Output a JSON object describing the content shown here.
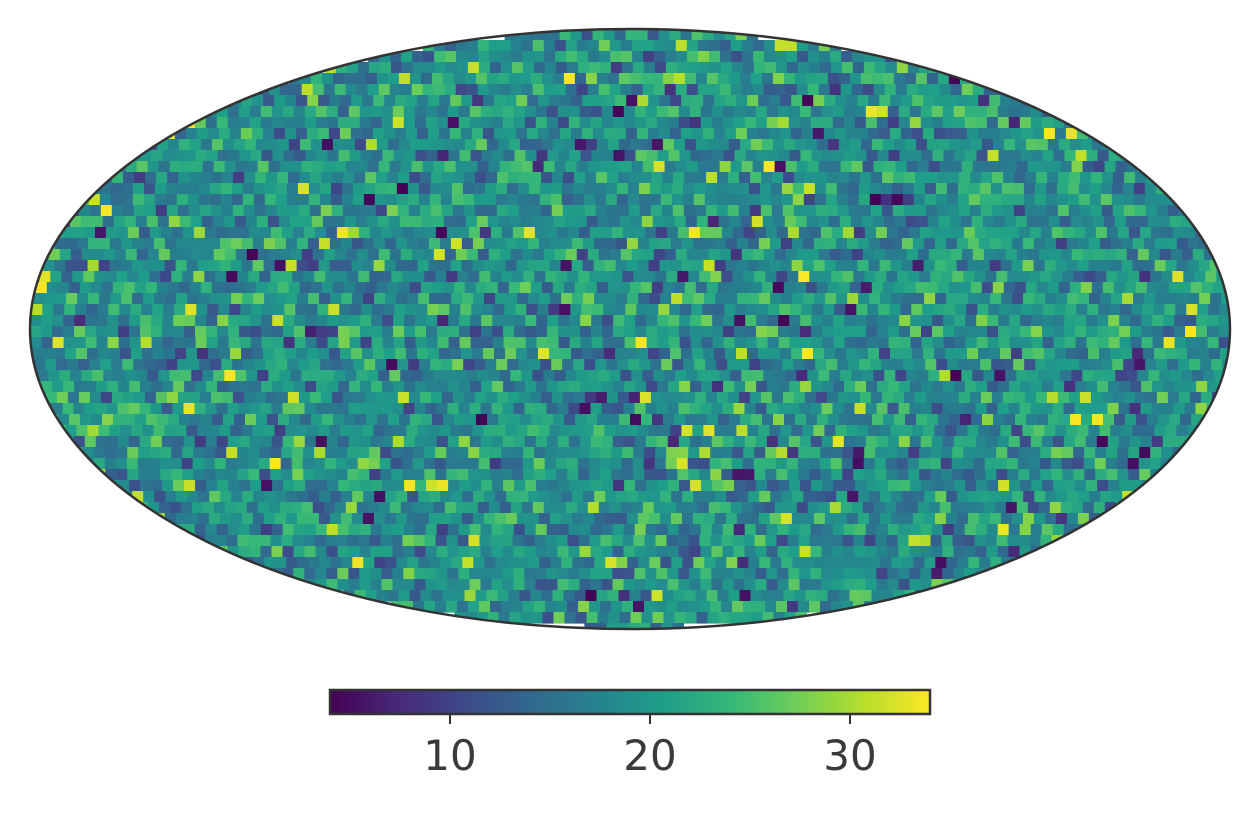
{
  "chart_data": {
    "type": "heatmap",
    "projection": "mollweide",
    "colormap": "viridis",
    "colormap_stops": [
      "#440154",
      "#482878",
      "#3e4989",
      "#31688e",
      "#26828e",
      "#1f9e89",
      "#35b779",
      "#6ece58",
      "#b5de2b",
      "#fde725"
    ],
    "title": "",
    "colorbar": {
      "range": [
        4,
        34
      ],
      "ticks": [
        10,
        20,
        30
      ],
      "tick_labels": [
        "10",
        "20",
        "30"
      ],
      "orientation": "horizontal",
      "placement": "bottom"
    },
    "value_statistics": {
      "min": 4,
      "max": 34,
      "typical": 19
    },
    "grid": false,
    "legend": "none"
  },
  "colors": {
    "frame": "#333333",
    "text": "#3a3a3a",
    "background": "#ffffff"
  }
}
